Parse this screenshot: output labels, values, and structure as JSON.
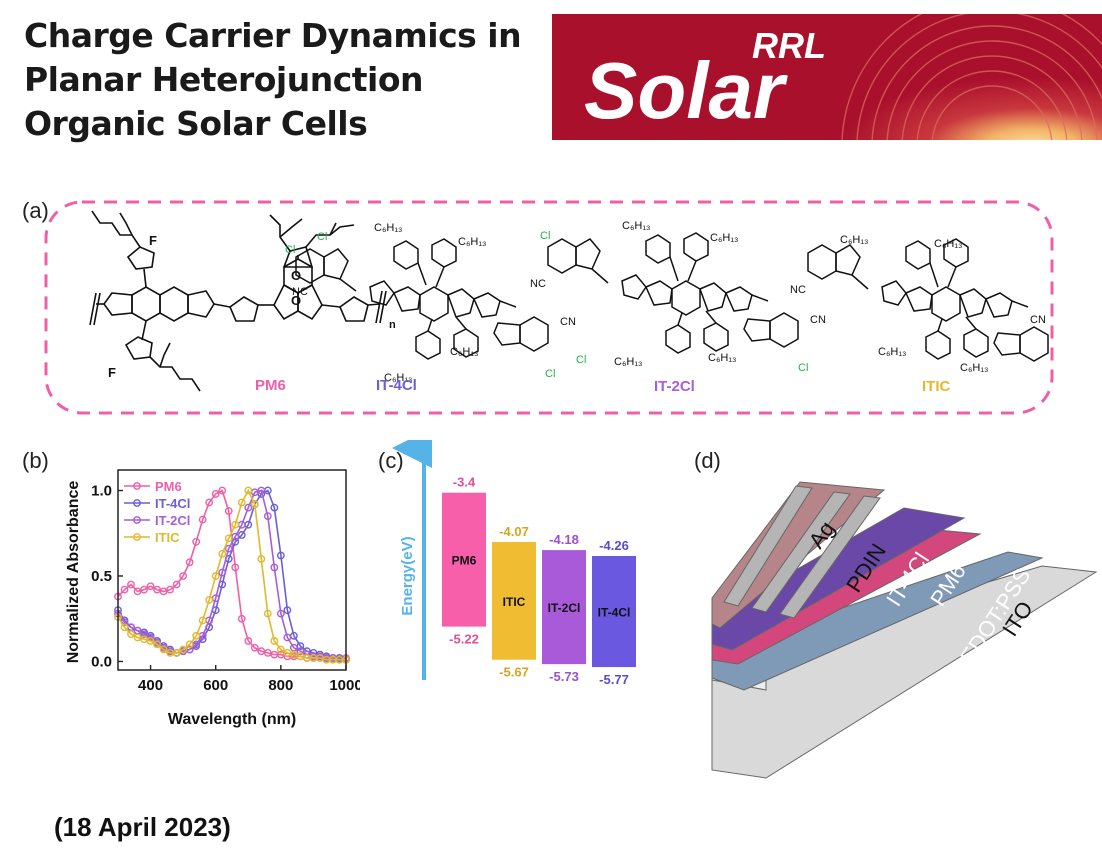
{
  "title_lines": [
    "Charge Carrier Dynamics in",
    "Planar Heterojunction",
    "Organic Solar Cells"
  ],
  "logo": {
    "small": "RRL",
    "big": "Solar",
    "colors": {
      "bg": "#a8102c",
      "glow": "#f5c77a"
    }
  },
  "panel_labels": {
    "a": "(a)",
    "b": "(b)",
    "c": "(c)",
    "d": "(d)"
  },
  "molecules": {
    "names": [
      "PM6",
      "IT-4Cl",
      "IT-2Cl",
      "ITIC"
    ],
    "name_colors": [
      "#ef5fa7",
      "#6a5fd8",
      "#a65fd4",
      "#e2b82c"
    ],
    "substituents": {
      "c6h13": "C₆H₁₃",
      "cn": "NC",
      "cn2": "CN",
      "cl": "Cl",
      "f": "F",
      "s": "S",
      "o": "O",
      "n": "n"
    }
  },
  "chart_data": [
    {
      "type": "line",
      "xlabel": "Wavelength (nm)",
      "ylabel": "Normalized Absorbance",
      "xlim": [
        300,
        1000
      ],
      "ylim": [
        -0.05,
        1.12
      ],
      "xticks": [
        400,
        600,
        800,
        1000
      ],
      "yticks": [
        0.0,
        0.5,
        1.0
      ],
      "ytick_labels": [
        "0.0",
        "0.5",
        "1.0"
      ],
      "legend_position": "top-left",
      "series": [
        {
          "name": "PM6",
          "color": "#ef5fa7",
          "x": [
            300,
            320,
            340,
            360,
            380,
            400,
            420,
            440,
            460,
            480,
            500,
            520,
            540,
            560,
            580,
            600,
            620,
            640,
            660,
            680,
            700,
            720,
            740,
            760,
            780,
            800,
            820,
            840,
            860,
            880,
            900,
            920,
            940,
            960,
            980,
            1000
          ],
          "y": [
            0.38,
            0.42,
            0.45,
            0.41,
            0.42,
            0.44,
            0.42,
            0.41,
            0.42,
            0.45,
            0.5,
            0.58,
            0.7,
            0.83,
            0.93,
            0.98,
            1.0,
            0.88,
            0.55,
            0.25,
            0.12,
            0.08,
            0.06,
            0.05,
            0.04,
            0.04,
            0.03,
            0.03,
            0.03,
            0.02,
            0.02,
            0.02,
            0.02,
            0.02,
            0.02,
            0.02
          ]
        },
        {
          "name": "IT-4Cl",
          "color": "#6a5fd8",
          "x": [
            300,
            320,
            340,
            360,
            380,
            400,
            420,
            440,
            460,
            480,
            500,
            520,
            540,
            560,
            580,
            600,
            620,
            640,
            660,
            680,
            700,
            720,
            740,
            760,
            780,
            800,
            820,
            840,
            860,
            880,
            900,
            920,
            940,
            960,
            980,
            1000
          ],
          "y": [
            0.3,
            0.24,
            0.2,
            0.18,
            0.17,
            0.15,
            0.12,
            0.09,
            0.07,
            0.05,
            0.06,
            0.07,
            0.09,
            0.13,
            0.2,
            0.3,
            0.45,
            0.6,
            0.7,
            0.74,
            0.8,
            0.92,
            0.98,
            1.0,
            0.9,
            0.62,
            0.3,
            0.15,
            0.09,
            0.06,
            0.05,
            0.04,
            0.03,
            0.02,
            0.02,
            0.01
          ]
        },
        {
          "name": "IT-2Cl",
          "color": "#a65fd4",
          "x": [
            300,
            320,
            340,
            360,
            380,
            400,
            420,
            440,
            460,
            480,
            500,
            520,
            540,
            560,
            580,
            600,
            620,
            640,
            660,
            680,
            700,
            720,
            740,
            760,
            780,
            800,
            820,
            840,
            860,
            880,
            900,
            920,
            940,
            960,
            980,
            1000
          ],
          "y": [
            0.28,
            0.23,
            0.2,
            0.18,
            0.16,
            0.14,
            0.11,
            0.08,
            0.06,
            0.05,
            0.06,
            0.07,
            0.1,
            0.15,
            0.24,
            0.37,
            0.52,
            0.66,
            0.73,
            0.8,
            0.9,
            0.99,
            1.0,
            0.85,
            0.55,
            0.28,
            0.14,
            0.08,
            0.06,
            0.04,
            0.03,
            0.03,
            0.02,
            0.02,
            0.01,
            0.01
          ]
        },
        {
          "name": "ITIC",
          "color": "#e2b82c",
          "x": [
            300,
            320,
            340,
            360,
            380,
            400,
            420,
            440,
            460,
            480,
            500,
            520,
            540,
            560,
            580,
            600,
            620,
            640,
            660,
            680,
            700,
            720,
            740,
            760,
            780,
            800,
            820,
            840,
            860,
            880,
            900,
            920,
            940,
            960,
            980,
            1000
          ],
          "y": [
            0.26,
            0.2,
            0.16,
            0.14,
            0.13,
            0.12,
            0.1,
            0.07,
            0.05,
            0.05,
            0.07,
            0.1,
            0.15,
            0.24,
            0.36,
            0.5,
            0.63,
            0.72,
            0.8,
            0.93,
            1.0,
            0.92,
            0.6,
            0.28,
            0.12,
            0.07,
            0.05,
            0.04,
            0.03,
            0.02,
            0.02,
            0.02,
            0.01,
            0.01,
            0.01,
            0.01
          ]
        }
      ]
    },
    {
      "type": "bar",
      "ylabel": "Energy(eV)",
      "categories": [
        "PM6",
        "ITIC",
        "IT-2Cl",
        "IT-4Cl"
      ],
      "lumo": [
        -3.4,
        -4.07,
        -4.18,
        -4.26
      ],
      "homo": [
        -5.22,
        -5.67,
        -5.73,
        -5.77
      ],
      "lumo_labels": [
        "-3.4",
        "-4.07",
        "-4.18",
        "-4.26"
      ],
      "homo_labels": [
        "-5.22",
        "-5.67",
        "-5.73",
        "-5.77"
      ],
      "colors": [
        "#f75faa",
        "#f0bd32",
        "#a95ad8",
        "#6a58e0"
      ],
      "label_colors": [
        "#e0509a",
        "#d6a520",
        "#9b50cc",
        "#5a4ad0"
      ]
    }
  ],
  "device": {
    "layers": [
      {
        "label": "ITO",
        "color": "#d8d8d8"
      },
      {
        "label": "PEDOT:PSS",
        "color": "#7d99b6"
      },
      {
        "label": "PM6",
        "color": "#d8487e"
      },
      {
        "label": "IT-4Cl",
        "color": "#6a4aa8"
      },
      {
        "label": "PDIN",
        "color": "#b7868a"
      },
      {
        "label": "Ag",
        "color": "#b3b3b3"
      }
    ]
  },
  "date": "(18 April 2023)"
}
